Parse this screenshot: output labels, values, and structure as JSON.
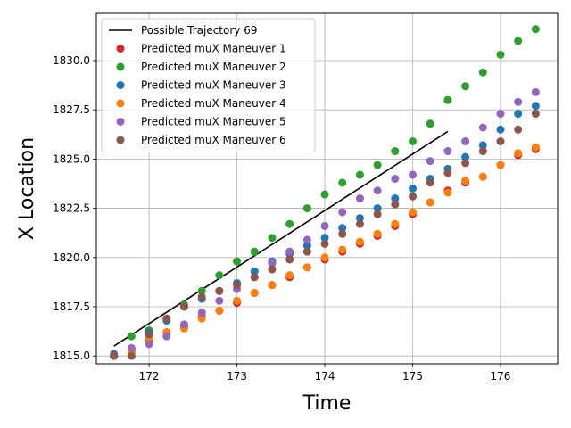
{
  "chart_data": {
    "type": "scatter",
    "xlabel": "Time",
    "ylabel": "X Location",
    "xlim": [
      171.4,
      176.65
    ],
    "ylim": [
      1814.6,
      1832.4
    ],
    "xticks": [
      172,
      173,
      174,
      175,
      176
    ],
    "yticks": [
      1815.0,
      1817.5,
      1820.0,
      1822.5,
      1825.0,
      1827.5,
      1830.0
    ],
    "xtick_labels": [
      "172",
      "173",
      "174",
      "175",
      "176"
    ],
    "ytick_labels": [
      "1815.0",
      "1817.5",
      "1820.0",
      "1822.5",
      "1825.0",
      "1827.5",
      "1830.0"
    ],
    "grid": true,
    "legend_position": "top-left",
    "line": {
      "name": "Possible Trajectory 69",
      "color": "#000000",
      "x": [
        171.6,
        175.4
      ],
      "y": [
        1815.5,
        1826.4
      ]
    },
    "series": [
      {
        "name": "Predicted muX Maneuver 1",
        "color": "#d62728",
        "x": [
          171.6,
          171.8,
          172.0,
          172.2,
          172.4,
          172.6,
          172.8,
          173.0,
          173.2,
          173.4,
          173.6,
          173.8,
          174.0,
          174.2,
          174.4,
          174.6,
          174.8,
          175.0,
          175.2,
          175.4,
          175.6,
          175.8,
          176.0,
          176.2,
          176.4
        ],
        "y": [
          1815.0,
          1815.2,
          1815.8,
          1816.2,
          1816.5,
          1817.0,
          1817.3,
          1817.7,
          1818.2,
          1818.6,
          1819.0,
          1819.5,
          1819.9,
          1820.3,
          1820.7,
          1821.1,
          1821.6,
          1822.2,
          1822.8,
          1823.4,
          1823.8,
          1824.1,
          1824.7,
          1825.2,
          1825.5
        ]
      },
      {
        "name": "Predicted muX Maneuver 2",
        "color": "#2ca02c",
        "x": [
          171.6,
          171.8,
          172.0,
          172.2,
          172.4,
          172.6,
          172.8,
          173.0,
          173.2,
          173.4,
          173.6,
          173.8,
          174.0,
          174.2,
          174.4,
          174.6,
          174.8,
          175.0,
          175.2,
          175.4,
          175.6,
          175.8,
          176.0,
          176.2,
          176.4
        ],
        "y": [
          1815.0,
          1816.0,
          1816.3,
          1816.8,
          1817.6,
          1818.3,
          1819.1,
          1819.8,
          1820.3,
          1821.0,
          1821.7,
          1822.5,
          1823.2,
          1823.8,
          1824.2,
          1824.7,
          1825.4,
          1825.9,
          1826.8,
          1828.0,
          1828.7,
          1829.4,
          1830.3,
          1831.0,
          1831.6
        ]
      },
      {
        "name": "Predicted muX Maneuver 3",
        "color": "#1f77b4",
        "x": [
          171.6,
          171.8,
          172.0,
          172.2,
          172.4,
          172.6,
          172.8,
          173.0,
          173.2,
          173.4,
          173.6,
          173.8,
          174.0,
          174.2,
          174.4,
          174.6,
          174.8,
          175.0,
          175.2,
          175.4,
          175.6,
          175.8,
          176.0,
          176.2,
          176.4
        ],
        "y": [
          1815.1,
          1815.3,
          1816.2,
          1816.8,
          1817.5,
          1817.9,
          1818.3,
          1818.7,
          1819.3,
          1819.8,
          1820.2,
          1820.6,
          1821.0,
          1821.5,
          1822.0,
          1822.5,
          1823.0,
          1823.5,
          1824.0,
          1824.5,
          1825.1,
          1825.7,
          1826.5,
          1827.3,
          1827.7
        ]
      },
      {
        "name": "Predicted muX Maneuver 4",
        "color": "#ff7f0e",
        "x": [
          171.6,
          171.8,
          172.0,
          172.2,
          172.4,
          172.6,
          172.8,
          173.0,
          173.2,
          173.4,
          173.6,
          173.8,
          174.0,
          174.2,
          174.4,
          174.6,
          174.8,
          175.0,
          175.2,
          175.4,
          175.6,
          175.8,
          176.0,
          176.2,
          176.4
        ],
        "y": [
          1815.0,
          1815.2,
          1815.9,
          1816.2,
          1816.4,
          1816.9,
          1817.3,
          1817.8,
          1818.2,
          1818.6,
          1819.1,
          1819.5,
          1820.0,
          1820.4,
          1820.8,
          1821.2,
          1821.7,
          1822.3,
          1822.8,
          1823.3,
          1823.9,
          1824.1,
          1824.7,
          1825.3,
          1825.6
        ]
      },
      {
        "name": "Predicted muX Maneuver 5",
        "color": "#9467bd",
        "x": [
          171.6,
          171.8,
          172.0,
          172.2,
          172.4,
          172.6,
          172.8,
          173.0,
          173.2,
          173.4,
          173.6,
          173.8,
          174.0,
          174.2,
          174.4,
          174.6,
          174.8,
          175.0,
          175.2,
          175.4,
          175.6,
          175.8,
          176.0,
          176.2,
          176.4
        ],
        "y": [
          1815.0,
          1815.4,
          1815.6,
          1816.0,
          1816.6,
          1817.2,
          1817.8,
          1818.4,
          1819.0,
          1819.7,
          1820.3,
          1820.9,
          1821.6,
          1822.3,
          1823.0,
          1823.4,
          1824.0,
          1824.2,
          1824.9,
          1825.4,
          1825.9,
          1826.6,
          1827.3,
          1827.9,
          1828.4
        ]
      },
      {
        "name": "Predicted muX Maneuver 6",
        "color": "#8c564b",
        "x": [
          171.6,
          171.8,
          172.0,
          172.2,
          172.4,
          172.6,
          172.8,
          173.0,
          173.2,
          173.4,
          173.6,
          173.8,
          174.0,
          174.2,
          174.4,
          174.6,
          174.8,
          175.0,
          175.2,
          175.4,
          175.6,
          175.8,
          176.0,
          176.2,
          176.4
        ],
        "y": [
          1815.0,
          1815.0,
          1816.1,
          1816.9,
          1817.5,
          1818.0,
          1818.3,
          1818.6,
          1819.0,
          1819.4,
          1819.9,
          1820.3,
          1820.7,
          1821.2,
          1821.7,
          1822.2,
          1822.7,
          1823.1,
          1823.8,
          1824.3,
          1824.8,
          1825.4,
          1825.9,
          1826.5,
          1827.3
        ]
      }
    ]
  }
}
